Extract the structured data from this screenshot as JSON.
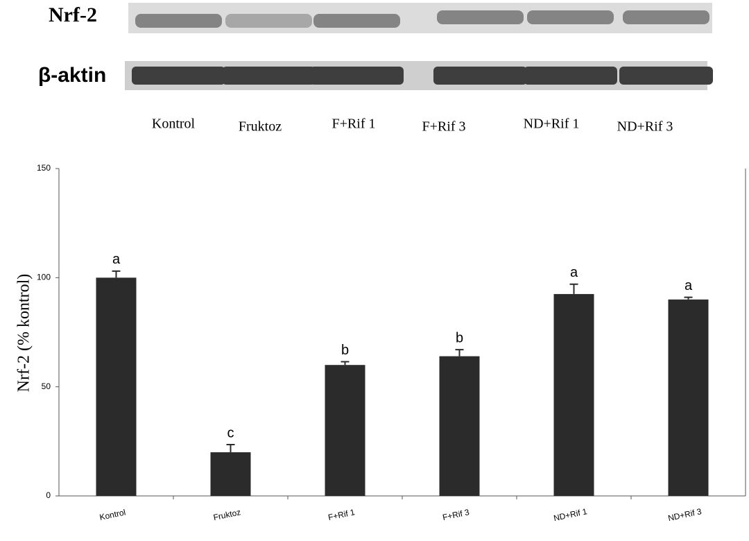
{
  "blot": {
    "rows": [
      "Nrf-2",
      "β-aktin"
    ],
    "lanes": [
      "Kontrol",
      "Fruktoz",
      "F+Rif 1",
      "F+Rif 3",
      "ND+Rif 1",
      "ND+Rif 3"
    ]
  },
  "chart_data": {
    "type": "bar",
    "y_label": "Nrf-2  (% kontrol)",
    "categories": [
      "Kontrol",
      "Fruktoz",
      "F+Rif 1",
      "F+Rif 3",
      "ND+Rif 1",
      "ND+Rif 3"
    ],
    "values": [
      100,
      20,
      60,
      64,
      92.5,
      90
    ],
    "errors": [
      3,
      3.5,
      1.5,
      3,
      4.5,
      1
    ],
    "annotations": [
      "a",
      "c",
      "b",
      "b",
      "a",
      "a"
    ],
    "color": "#2b2b2b",
    "ylim": [
      0,
      150
    ],
    "yticks": [
      0,
      50,
      100,
      150
    ]
  }
}
